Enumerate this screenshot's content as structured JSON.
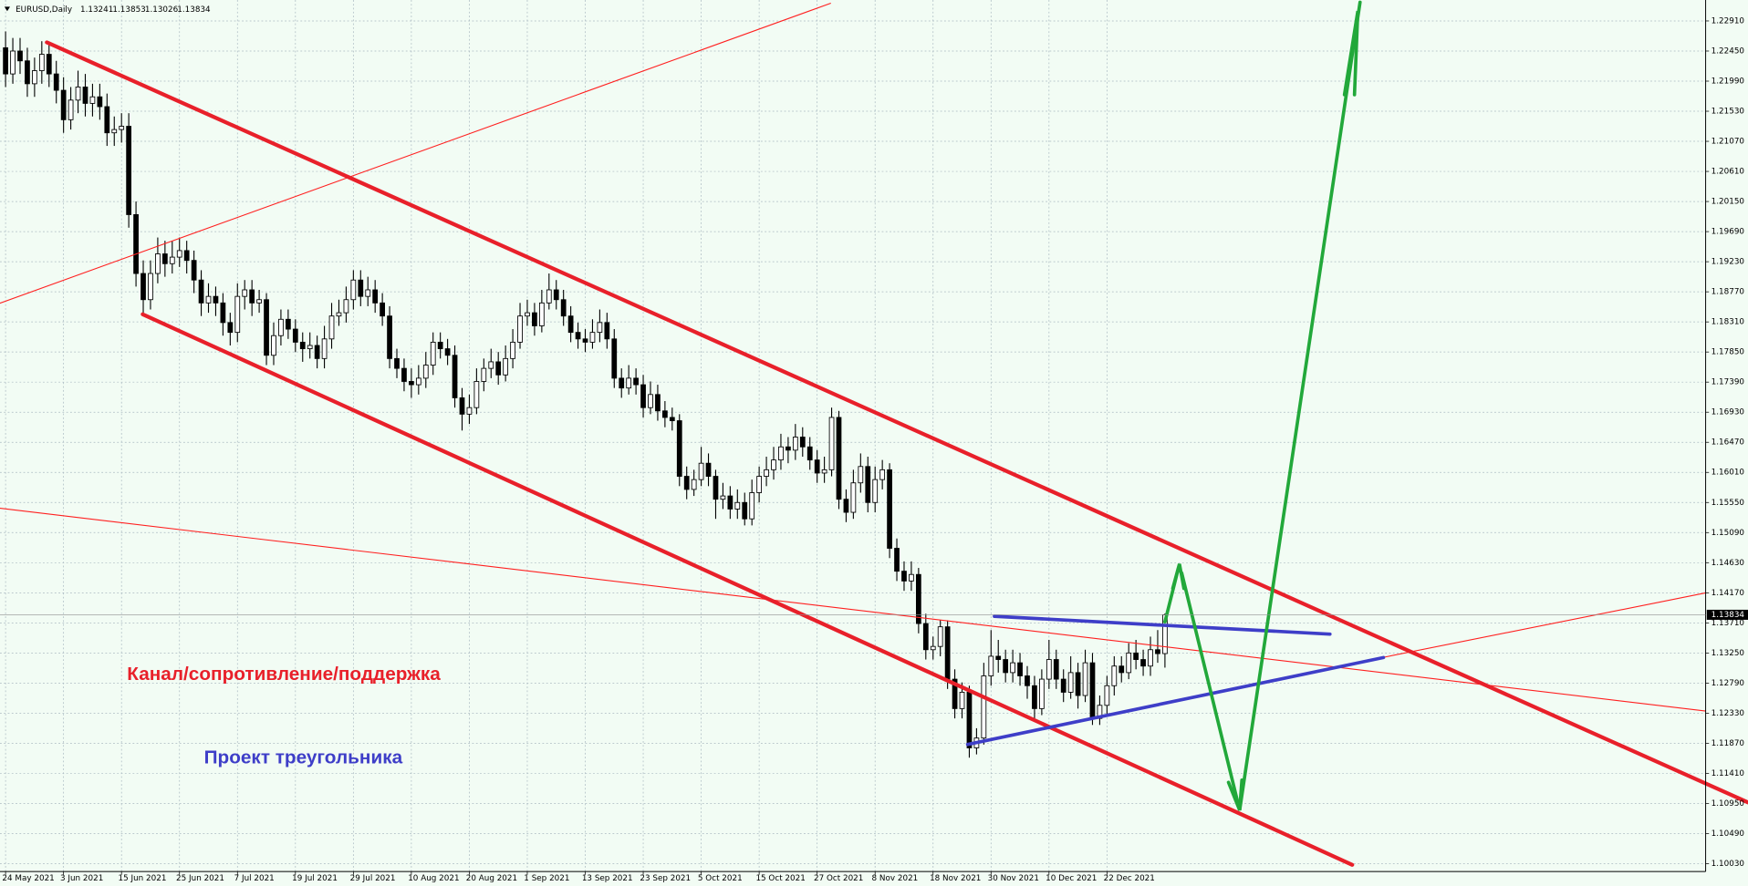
{
  "header": {
    "symbol": "EURUSD,Daily"
  },
  "chart_data": {
    "type": "candlestick",
    "candles": [
      [
        1.225,
        1.2275,
        1.219,
        1.221
      ],
      [
        1.221,
        1.2265,
        1.2195,
        1.2245
      ],
      [
        1.2245,
        1.2265,
        1.221,
        1.223
      ],
      [
        1.223,
        1.225,
        1.2175,
        1.2195
      ],
      [
        1.2195,
        1.2235,
        1.2175,
        1.2215
      ],
      [
        1.2215,
        1.226,
        1.2195,
        1.224
      ],
      [
        1.224,
        1.2255,
        1.219,
        1.221
      ],
      [
        1.221,
        1.223,
        1.2165,
        1.2185
      ],
      [
        1.2185,
        1.2205,
        1.212,
        1.214
      ],
      [
        1.214,
        1.219,
        1.2125,
        1.217
      ],
      [
        1.217,
        1.2215,
        1.215,
        1.219
      ],
      [
        1.219,
        1.221,
        1.2145,
        1.2165
      ],
      [
        1.2165,
        1.2195,
        1.2145,
        1.2175
      ],
      [
        1.2175,
        1.2195,
        1.214,
        1.216
      ],
      [
        1.216,
        1.218,
        1.21,
        1.212
      ],
      [
        1.212,
        1.2145,
        1.21,
        1.2125
      ],
      [
        1.2125,
        1.215,
        1.2105,
        1.213
      ],
      [
        1.213,
        1.215,
        1.1975,
        1.1995
      ],
      [
        1.1995,
        1.2015,
        1.1885,
        1.1905
      ],
      [
        1.1905,
        1.1925,
        1.1845,
        1.1865
      ],
      [
        1.1865,
        1.1925,
        1.185,
        1.1905
      ],
      [
        1.1905,
        1.196,
        1.189,
        1.1935
      ],
      [
        1.1935,
        1.1955,
        1.19,
        1.192
      ],
      [
        1.192,
        1.1955,
        1.1905,
        1.193
      ],
      [
        1.193,
        1.196,
        1.1915,
        1.194
      ],
      [
        1.194,
        1.1955,
        1.1905,
        1.1925
      ],
      [
        1.1925,
        1.194,
        1.1875,
        1.1895
      ],
      [
        1.1895,
        1.191,
        1.184,
        1.186
      ],
      [
        1.186,
        1.189,
        1.1845,
        1.187
      ],
      [
        1.187,
        1.1885,
        1.184,
        1.186
      ],
      [
        1.186,
        1.1875,
        1.181,
        1.183
      ],
      [
        1.183,
        1.1845,
        1.1795,
        1.1815
      ],
      [
        1.1815,
        1.189,
        1.18,
        1.187
      ],
      [
        1.187,
        1.1895,
        1.185,
        1.188
      ],
      [
        1.188,
        1.1895,
        1.184,
        1.186
      ],
      [
        1.186,
        1.188,
        1.1845,
        1.1865
      ],
      [
        1.1865,
        1.1875,
        1.1765,
        1.178
      ],
      [
        1.178,
        1.183,
        1.1765,
        1.181
      ],
      [
        1.181,
        1.185,
        1.1795,
        1.1835
      ],
      [
        1.1835,
        1.185,
        1.1805,
        1.182
      ],
      [
        1.182,
        1.1835,
        1.1785,
        1.18
      ],
      [
        1.18,
        1.1815,
        1.177,
        1.179
      ],
      [
        1.179,
        1.1815,
        1.1775,
        1.1795
      ],
      [
        1.1795,
        1.181,
        1.176,
        1.1775
      ],
      [
        1.1775,
        1.1825,
        1.176,
        1.1805
      ],
      [
        1.1805,
        1.186,
        1.179,
        1.184
      ],
      [
        1.184,
        1.1865,
        1.1825,
        1.1845
      ],
      [
        1.1845,
        1.1885,
        1.183,
        1.1865
      ],
      [
        1.1865,
        1.191,
        1.185,
        1.1895
      ],
      [
        1.1895,
        1.191,
        1.1855,
        1.187
      ],
      [
        1.187,
        1.19,
        1.1855,
        1.188
      ],
      [
        1.188,
        1.1895,
        1.1845,
        1.186
      ],
      [
        1.186,
        1.1875,
        1.1825,
        1.184
      ],
      [
        1.184,
        1.1855,
        1.176,
        1.1775
      ],
      [
        1.1775,
        1.179,
        1.1745,
        1.176
      ],
      [
        1.176,
        1.1775,
        1.1725,
        1.174
      ],
      [
        1.174,
        1.176,
        1.1715,
        1.1735
      ],
      [
        1.1735,
        1.1765,
        1.172,
        1.1745
      ],
      [
        1.1745,
        1.1785,
        1.173,
        1.1765
      ],
      [
        1.1765,
        1.1815,
        1.175,
        1.18
      ],
      [
        1.18,
        1.1815,
        1.1775,
        1.179
      ],
      [
        1.179,
        1.1805,
        1.1765,
        1.178
      ],
      [
        1.178,
        1.1795,
        1.17,
        1.1715
      ],
      [
        1.1715,
        1.173,
        1.1665,
        1.169
      ],
      [
        1.169,
        1.172,
        1.1675,
        1.17
      ],
      [
        1.17,
        1.176,
        1.169,
        1.174
      ],
      [
        1.174,
        1.1775,
        1.1725,
        1.176
      ],
      [
        1.176,
        1.179,
        1.1745,
        1.177
      ],
      [
        1.177,
        1.1785,
        1.1735,
        1.175
      ],
      [
        1.175,
        1.1795,
        1.174,
        1.1775
      ],
      [
        1.1775,
        1.182,
        1.176,
        1.18
      ],
      [
        1.18,
        1.186,
        1.179,
        1.184
      ],
      [
        1.184,
        1.1865,
        1.1825,
        1.1845
      ],
      [
        1.1845,
        1.186,
        1.181,
        1.1825
      ],
      [
        1.1825,
        1.188,
        1.1815,
        1.186
      ],
      [
        1.186,
        1.1905,
        1.185,
        1.188
      ],
      [
        1.188,
        1.1895,
        1.185,
        1.1865
      ],
      [
        1.1865,
        1.188,
        1.1825,
        1.184
      ],
      [
        1.184,
        1.1855,
        1.18,
        1.1815
      ],
      [
        1.1815,
        1.183,
        1.179,
        1.1805
      ],
      [
        1.1805,
        1.182,
        1.1785,
        1.18
      ],
      [
        1.18,
        1.1835,
        1.179,
        1.1815
      ],
      [
        1.1815,
        1.185,
        1.18,
        1.183
      ],
      [
        1.183,
        1.1845,
        1.179,
        1.1805
      ],
      [
        1.1805,
        1.182,
        1.173,
        1.1745
      ],
      [
        1.1745,
        1.176,
        1.1715,
        1.173
      ],
      [
        1.173,
        1.1765,
        1.172,
        1.1745
      ],
      [
        1.1745,
        1.176,
        1.172,
        1.1735
      ],
      [
        1.1735,
        1.175,
        1.1685,
        1.17
      ],
      [
        1.17,
        1.174,
        1.169,
        1.172
      ],
      [
        1.172,
        1.1735,
        1.168,
        1.1695
      ],
      [
        1.1695,
        1.171,
        1.167,
        1.1685
      ],
      [
        1.1685,
        1.17,
        1.1665,
        1.168
      ],
      [
        1.168,
        1.169,
        1.158,
        1.1595
      ],
      [
        1.1595,
        1.161,
        1.156,
        1.1575
      ],
      [
        1.1575,
        1.1605,
        1.1565,
        1.159
      ],
      [
        1.159,
        1.164,
        1.158,
        1.1615
      ],
      [
        1.1615,
        1.163,
        1.158,
        1.1595
      ],
      [
        1.1595,
        1.1605,
        1.153,
        1.156
      ],
      [
        1.156,
        1.1585,
        1.1545,
        1.1565
      ],
      [
        1.1565,
        1.158,
        1.153,
        1.1545
      ],
      [
        1.1545,
        1.1575,
        1.153,
        1.1555
      ],
      [
        1.1555,
        1.157,
        1.152,
        1.153
      ],
      [
        1.153,
        1.159,
        1.152,
        1.157
      ],
      [
        1.157,
        1.161,
        1.1555,
        1.1595
      ],
      [
        1.1595,
        1.1625,
        1.158,
        1.1605
      ],
      [
        1.1605,
        1.164,
        1.159,
        1.162
      ],
      [
        1.162,
        1.166,
        1.1605,
        1.164
      ],
      [
        1.164,
        1.1655,
        1.1615,
        1.1635
      ],
      [
        1.1635,
        1.1675,
        1.162,
        1.1655
      ],
      [
        1.1655,
        1.167,
        1.1625,
        1.164
      ],
      [
        1.164,
        1.1655,
        1.1605,
        1.162
      ],
      [
        1.162,
        1.1635,
        1.1585,
        1.16
      ],
      [
        1.16,
        1.1625,
        1.1585,
        1.1605
      ],
      [
        1.1605,
        1.17,
        1.1595,
        1.1685
      ],
      [
        1.1685,
        1.1695,
        1.1545,
        1.156
      ],
      [
        1.156,
        1.1575,
        1.1525,
        1.154
      ],
      [
        1.154,
        1.1605,
        1.153,
        1.1585
      ],
      [
        1.1585,
        1.163,
        1.157,
        1.161
      ],
      [
        1.161,
        1.1625,
        1.154,
        1.1555
      ],
      [
        1.1555,
        1.161,
        1.154,
        1.159
      ],
      [
        1.159,
        1.162,
        1.1575,
        1.1605
      ],
      [
        1.1605,
        1.1615,
        1.147,
        1.1485
      ],
      [
        1.1485,
        1.15,
        1.1435,
        1.145
      ],
      [
        1.145,
        1.1465,
        1.142,
        1.1435
      ],
      [
        1.1435,
        1.1465,
        1.142,
        1.1445
      ],
      [
        1.1445,
        1.1455,
        1.1355,
        1.137
      ],
      [
        1.137,
        1.1385,
        1.1315,
        1.133
      ],
      [
        1.133,
        1.135,
        1.1315,
        1.1335
      ],
      [
        1.1335,
        1.1375,
        1.132,
        1.1365
      ],
      [
        1.1365,
        1.1375,
        1.127,
        1.1285
      ],
      [
        1.1285,
        1.13,
        1.1225,
        1.124
      ],
      [
        1.124,
        1.128,
        1.1225,
        1.1265
      ],
      [
        1.1265,
        1.1275,
        1.1165,
        1.118
      ],
      [
        1.118,
        1.121,
        1.117,
        1.1195
      ],
      [
        1.1195,
        1.131,
        1.1185,
        1.129
      ],
      [
        1.129,
        1.136,
        1.1275,
        1.132
      ],
      [
        1.132,
        1.1345,
        1.1295,
        1.1315
      ],
      [
        1.1315,
        1.133,
        1.128,
        1.1295
      ],
      [
        1.1295,
        1.133,
        1.128,
        1.131
      ],
      [
        1.131,
        1.1325,
        1.1275,
        1.129
      ],
      [
        1.129,
        1.1305,
        1.1255,
        1.1275
      ],
      [
        1.1275,
        1.129,
        1.1225,
        1.124
      ],
      [
        1.124,
        1.13,
        1.123,
        1.1285
      ],
      [
        1.1285,
        1.1345,
        1.127,
        1.1315
      ],
      [
        1.1315,
        1.133,
        1.127,
        1.1285
      ],
      [
        1.1285,
        1.13,
        1.125,
        1.1265
      ],
      [
        1.1265,
        1.132,
        1.1255,
        1.1295
      ],
      [
        1.1295,
        1.131,
        1.124,
        1.126
      ],
      [
        1.126,
        1.133,
        1.125,
        1.131
      ],
      [
        1.131,
        1.1325,
        1.1215,
        1.1225
      ],
      [
        1.1225,
        1.126,
        1.1215,
        1.1245
      ],
      [
        1.1245,
        1.129,
        1.123,
        1.1275
      ],
      [
        1.1275,
        1.132,
        1.126,
        1.1305
      ],
      [
        1.1305,
        1.132,
        1.128,
        1.1295
      ],
      [
        1.1295,
        1.134,
        1.1285,
        1.1325
      ],
      [
        1.1325,
        1.1345,
        1.13,
        1.1315
      ],
      [
        1.1315,
        1.133,
        1.129,
        1.1305
      ],
      [
        1.1305,
        1.135,
        1.129,
        1.133
      ],
      [
        1.133,
        1.136,
        1.131,
        1.1324
      ],
      [
        1.13241,
        1.13853,
        1.13026,
        1.13834
      ]
    ],
    "colors": {
      "up": "#ffffff",
      "down": "#000000",
      "grid": "#a9b8c0"
    },
    "xlim": [
      -0.77,
      234.62
    ],
    "xticks": [
      {
        "value": 0,
        "label": "24 May 2021"
      },
      {
        "value": 8,
        "label": "3 Jun 2021"
      },
      {
        "value": 16,
        "label": "15 Jun 2021"
      },
      {
        "value": 24,
        "label": "25 Jun 2021"
      },
      {
        "value": 32,
        "label": "7 Jul 2021"
      },
      {
        "value": 40,
        "label": "19 Jul 2021"
      },
      {
        "value": 48,
        "label": "29 Jul 2021"
      },
      {
        "value": 56,
        "label": "10 Aug 2021"
      },
      {
        "value": 64,
        "label": "20 Aug 2021"
      },
      {
        "value": 72,
        "label": "1 Sep 2021"
      },
      {
        "value": 80,
        "label": "13 Sep 2021"
      },
      {
        "value": 88,
        "label": "23 Sep 2021"
      },
      {
        "value": 96,
        "label": "5 Oct 2021"
      },
      {
        "value": 104,
        "label": "15 Oct 2021"
      },
      {
        "value": 112,
        "label": "27 Oct 2021"
      },
      {
        "value": 120,
        "label": "8 Nov 2021"
      },
      {
        "value": 128,
        "label": "18 Nov 2021"
      },
      {
        "value": 136,
        "label": "30 Nov 2021"
      },
      {
        "value": 144,
        "label": "10 Dec 2021"
      },
      {
        "value": 152,
        "label": "22 Dec 2021"
      }
    ],
    "ylim": [
      1.0991,
      1.2323
    ],
    "yticks": [
      {
        "value": 1.2291,
        "label": "1.22910"
      },
      {
        "value": 1.2245,
        "label": "1.22450"
      },
      {
        "value": 1.2199,
        "label": "1.21990"
      },
      {
        "value": 1.2153,
        "label": "1.21530"
      },
      {
        "value": 1.2107,
        "label": "1.21070"
      },
      {
        "value": 1.2061,
        "label": "1.20610"
      },
      {
        "value": 1.2015,
        "label": "1.20150"
      },
      {
        "value": 1.1969,
        "label": "1.19690"
      },
      {
        "value": 1.1923,
        "label": "1.19230"
      },
      {
        "value": 1.1877,
        "label": "1.18770"
      },
      {
        "value": 1.1831,
        "label": "1.18310"
      },
      {
        "value": 1.1785,
        "label": "1.17850"
      },
      {
        "value": 1.1739,
        "label": "1.17390"
      },
      {
        "value": 1.1693,
        "label": "1.16930"
      },
      {
        "value": 1.1647,
        "label": "1.16470"
      },
      {
        "value": 1.1601,
        "label": "1.16010"
      },
      {
        "value": 1.1555,
        "label": "1.15550"
      },
      {
        "value": 1.1509,
        "label": "1.15090"
      },
      {
        "value": 1.1463,
        "label": "1.14630"
      },
      {
        "value": 1.1417,
        "label": "1.14170"
      },
      {
        "value": 1.1371,
        "label": "1.13710"
      },
      {
        "value": 1.1325,
        "label": "1.13250"
      },
      {
        "value": 1.1279,
        "label": "1.12790"
      },
      {
        "value": 1.1233,
        "label": "1.12330"
      },
      {
        "value": 1.1187,
        "label": "1.11870"
      },
      {
        "value": 1.1141,
        "label": "1.11410"
      },
      {
        "value": 1.1095,
        "label": "1.10950"
      },
      {
        "value": 1.1049,
        "label": "1.10490"
      },
      {
        "value": 1.1003,
        "label": "1.10030"
      }
    ],
    "grid": true,
    "annotations": [
      "Канал/сопротивление/поддержка",
      "Проект треугольника"
    ]
  }
}
